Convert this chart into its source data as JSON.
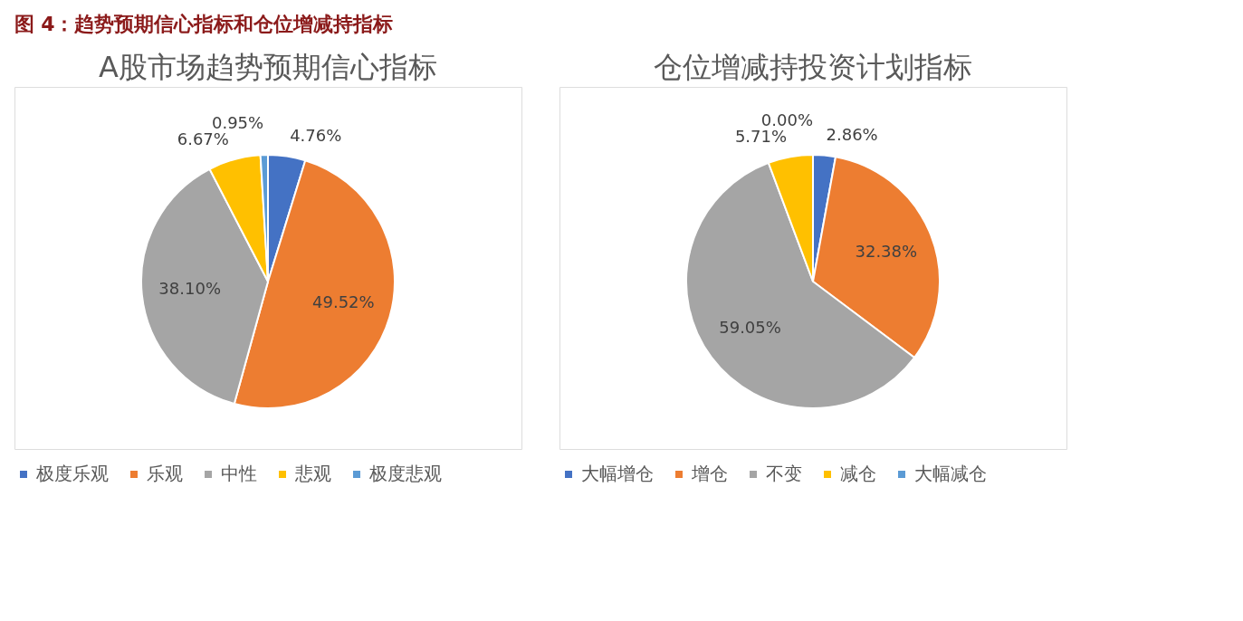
{
  "chart_data": [
    {
      "type": "pie",
      "title": "A股市场趋势预期信心指标",
      "annotations": [
        "图 4：趋势预期信心指标和仓位增减持指标"
      ],
      "categories": [
        "极度乐观",
        "乐观",
        "中性",
        "悲观",
        "极度悲观"
      ],
      "values": [
        4.76,
        49.52,
        38.1,
        6.67,
        0.95
      ],
      "colors": [
        "#4472c4",
        "#ed7d31",
        "#a5a5a5",
        "#ffc000",
        "#5b9bd5"
      ],
      "value_labels": [
        "4.76%",
        "49.52%",
        "38.10%",
        "6.67%",
        "0.95%"
      ],
      "legend": "bottom"
    },
    {
      "type": "pie",
      "title": "仓位增减持投资计划指标",
      "categories": [
        "大幅增仓",
        "增仓",
        "不变",
        "减仓",
        "大幅减仓"
      ],
      "values": [
        2.86,
        32.38,
        59.05,
        5.71,
        0.0
      ],
      "colors": [
        "#4472c4",
        "#ed7d31",
        "#a5a5a5",
        "#ffc000",
        "#5b9bd5"
      ],
      "value_labels": [
        "2.86%",
        "32.38%",
        "59.05%",
        "5.71%",
        "0.00%"
      ],
      "legend": "bottom"
    }
  ]
}
